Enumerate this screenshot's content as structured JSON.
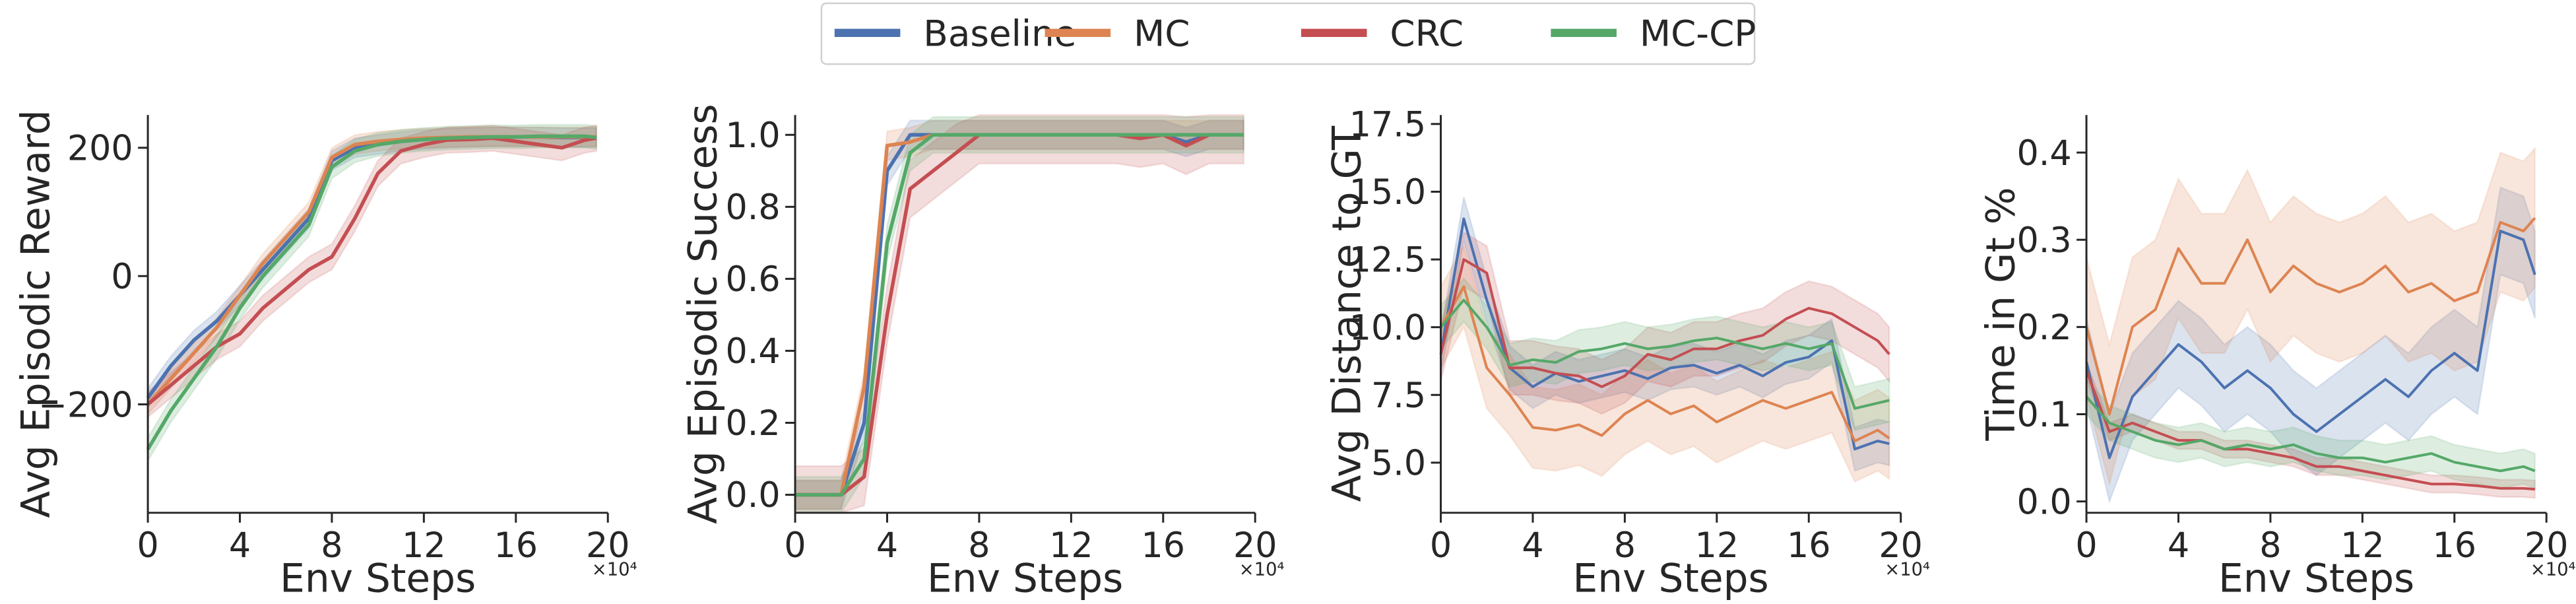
{
  "legend": {
    "placement": "top-center",
    "entries": [
      {
        "name": "Baseline",
        "color": "#4c72b0"
      },
      {
        "name": "MC",
        "color": "#dd8452"
      },
      {
        "name": "CRC",
        "color": "#c44e52"
      },
      {
        "name": "MC-CP",
        "color": "#55a868"
      }
    ]
  },
  "chart_data": [
    {
      "type": "line",
      "xlabel": "Env Steps",
      "x_multiplier": "×10⁴",
      "ylabel": "Avg Episodic Reward",
      "xlim": [
        0,
        20
      ],
      "ylim": [
        -369,
        251
      ],
      "xticks": [
        0,
        4,
        8,
        12,
        16,
        20
      ],
      "xtick_labels": [
        "0",
        "4",
        "8",
        "12",
        "16",
        "20"
      ],
      "yticks": [
        -200,
        0,
        200
      ],
      "ytick_labels": [
        "−200",
        "0",
        "200"
      ],
      "grid": false,
      "x": [
        0,
        1,
        2,
        3,
        4,
        5,
        6,
        7,
        8,
        9,
        10,
        11,
        12,
        13,
        14,
        15,
        16,
        17,
        18,
        19,
        19.5
      ],
      "series": [
        {
          "name": "Baseline",
          "band": 15,
          "values": [
            -190,
            -140,
            -100,
            -70,
            -30,
            10,
            50,
            90,
            180,
            200,
            205,
            210,
            213,
            215,
            216,
            217,
            217,
            217,
            216,
            216,
            216
          ]
        },
        {
          "name": "MC",
          "band": 15,
          "values": [
            -200,
            -160,
            -120,
            -80,
            -30,
            20,
            60,
            100,
            185,
            205,
            210,
            213,
            215,
            216,
            217,
            217,
            217,
            217,
            217,
            217,
            217
          ]
        },
        {
          "name": "CRC",
          "band": 20,
          "values": [
            -200,
            -170,
            -140,
            -110,
            -90,
            -50,
            -20,
            10,
            30,
            90,
            160,
            195,
            205,
            212,
            213,
            215,
            210,
            205,
            200,
            212,
            215
          ]
        },
        {
          "name": "MC-CP",
          "band": 18,
          "values": [
            -270,
            -210,
            -160,
            -110,
            -50,
            0,
            40,
            80,
            170,
            195,
            205,
            210,
            213,
            215,
            216,
            217,
            217,
            218,
            218,
            218,
            216
          ]
        }
      ]
    },
    {
      "type": "line",
      "xlabel": "Env Steps",
      "x_multiplier": "×10⁴",
      "ylabel": "Avg Episodic Success",
      "xlim": [
        0,
        20
      ],
      "ylim": [
        -0.05,
        1.055
      ],
      "xticks": [
        0,
        4,
        8,
        12,
        16,
        20
      ],
      "xtick_labels": [
        "0",
        "4",
        "8",
        "12",
        "16",
        "20"
      ],
      "yticks": [
        0,
        0.2,
        0.4,
        0.6,
        0.8,
        1.0
      ],
      "ytick_labels": [
        "0.0",
        "0.2",
        "0.4",
        "0.6",
        "0.8",
        "1.0"
      ],
      "grid": false,
      "x": [
        0,
        1,
        2,
        3,
        4,
        5,
        6,
        7,
        8,
        9,
        10,
        11,
        12,
        13,
        14,
        15,
        16,
        17,
        18,
        19,
        19.5
      ],
      "series": [
        {
          "name": "Baseline",
          "band": 0.04,
          "values": [
            0,
            0,
            0,
            0.2,
            0.9,
            1,
            1,
            1,
            1,
            1,
            1,
            1,
            1,
            1,
            1,
            1,
            1,
            0.98,
            1,
            1,
            1
          ]
        },
        {
          "name": "MC",
          "band": 0.04,
          "values": [
            0,
            0,
            0,
            0.3,
            0.97,
            0.98,
            1,
            1,
            1,
            1,
            1,
            1,
            1,
            1,
            1,
            1,
            1,
            1,
            1,
            1,
            1
          ]
        },
        {
          "name": "CRC",
          "band": 0.08,
          "values": [
            0,
            0,
            0,
            0.05,
            0.5,
            0.85,
            0.9,
            0.95,
            1,
            1,
            1,
            1,
            1,
            1,
            1,
            0.99,
            1,
            0.97,
            1,
            1,
            1
          ]
        },
        {
          "name": "MC-CP",
          "band": 0.05,
          "values": [
            0,
            0,
            0,
            0.1,
            0.7,
            0.95,
            1,
            1,
            1,
            1,
            1,
            1,
            1,
            1,
            1,
            1,
            1,
            1,
            1,
            1,
            1
          ]
        }
      ]
    },
    {
      "type": "line",
      "xlabel": "Env Steps",
      "x_multiplier": "×10⁴",
      "ylabel": "Avg Distance to GT",
      "xlim": [
        0,
        20
      ],
      "ylim": [
        3.15,
        17.83
      ],
      "xticks": [
        0,
        4,
        8,
        12,
        16,
        20
      ],
      "xtick_labels": [
        "0",
        "4",
        "8",
        "12",
        "16",
        "20"
      ],
      "yticks": [
        5,
        7.5,
        10,
        12.5,
        15,
        17.5
      ],
      "ytick_labels": [
        "5.0",
        "7.5",
        "10.0",
        "12.5",
        "15.0",
        "17.5"
      ],
      "grid": false,
      "x": [
        0,
        1,
        2,
        3,
        4,
        5,
        6,
        7,
        8,
        9,
        10,
        11,
        12,
        13,
        14,
        15,
        16,
        17,
        18,
        19,
        19.5
      ],
      "series": [
        {
          "name": "Baseline",
          "band": 0.8,
          "values": [
            9,
            14,
            11,
            8.5,
            7.8,
            8.3,
            8,
            8.2,
            8.4,
            8.1,
            8.5,
            8.6,
            8.3,
            8.6,
            8.2,
            8.7,
            8.9,
            9.5,
            5.5,
            5.8,
            5.7
          ]
        },
        {
          "name": "MC",
          "band": 1.5,
          "values": [
            10,
            11.5,
            8.5,
            7.5,
            6.3,
            6.2,
            6.4,
            6,
            6.8,
            7.3,
            6.8,
            7.1,
            6.5,
            6.9,
            7.3,
            7,
            7.3,
            7.6,
            5.8,
            6.2,
            5.9
          ]
        },
        {
          "name": "CRC",
          "band": 1.0,
          "values": [
            9,
            12.5,
            12,
            8.5,
            8.5,
            8.3,
            8.2,
            7.8,
            8.2,
            9,
            8.8,
            9.2,
            9.2,
            9.5,
            9.7,
            10.3,
            10.7,
            10.5,
            10,
            9.5,
            9
          ]
        },
        {
          "name": "MC-CP",
          "band": 0.8,
          "values": [
            10,
            11,
            10,
            8.6,
            8.8,
            8.7,
            9.1,
            9.2,
            9.4,
            9.2,
            9.3,
            9.5,
            9.6,
            9.4,
            9.2,
            9.4,
            9.2,
            9.4,
            7,
            7.2,
            7.3
          ]
        }
      ]
    },
    {
      "type": "line",
      "xlabel": "Env Steps",
      "x_multiplier": "×10⁴",
      "ylabel": "Time in Gt %",
      "xlim": [
        0,
        20
      ],
      "ylim": [
        -0.013,
        0.443
      ],
      "xticks": [
        0,
        4,
        8,
        12,
        16,
        20
      ],
      "xtick_labels": [
        "0",
        "4",
        "8",
        "12",
        "16",
        "20"
      ],
      "yticks": [
        0,
        0.1,
        0.2,
        0.3,
        0.4
      ],
      "ytick_labels": [
        "0.0",
        "0.1",
        "0.2",
        "0.3",
        "0.4"
      ],
      "grid": false,
      "x": [
        0,
        1,
        2,
        3,
        4,
        5,
        6,
        7,
        8,
        9,
        10,
        11,
        12,
        13,
        14,
        15,
        16,
        17,
        18,
        19,
        19.5
      ],
      "series": [
        {
          "name": "Baseline",
          "band": 0.05,
          "values": [
            0.16,
            0.05,
            0.12,
            0.15,
            0.18,
            0.16,
            0.13,
            0.15,
            0.13,
            0.1,
            0.08,
            0.1,
            0.12,
            0.14,
            0.12,
            0.15,
            0.17,
            0.15,
            0.31,
            0.3,
            0.26
          ]
        },
        {
          "name": "MC",
          "band": 0.08,
          "values": [
            0.2,
            0.1,
            0.2,
            0.22,
            0.29,
            0.25,
            0.25,
            0.3,
            0.24,
            0.27,
            0.25,
            0.24,
            0.25,
            0.27,
            0.24,
            0.25,
            0.23,
            0.24,
            0.32,
            0.31,
            0.325
          ]
        },
        {
          "name": "CRC",
          "band": 0.01,
          "values": [
            0.15,
            0.08,
            0.09,
            0.08,
            0.07,
            0.07,
            0.06,
            0.06,
            0.055,
            0.05,
            0.04,
            0.04,
            0.035,
            0.03,
            0.025,
            0.02,
            0.02,
            0.018,
            0.015,
            0.015,
            0.014
          ]
        },
        {
          "name": "MC-CP",
          "band": 0.02,
          "values": [
            0.12,
            0.09,
            0.08,
            0.07,
            0.065,
            0.07,
            0.06,
            0.065,
            0.06,
            0.065,
            0.055,
            0.05,
            0.05,
            0.045,
            0.05,
            0.055,
            0.045,
            0.04,
            0.035,
            0.04,
            0.035
          ]
        }
      ]
    }
  ]
}
